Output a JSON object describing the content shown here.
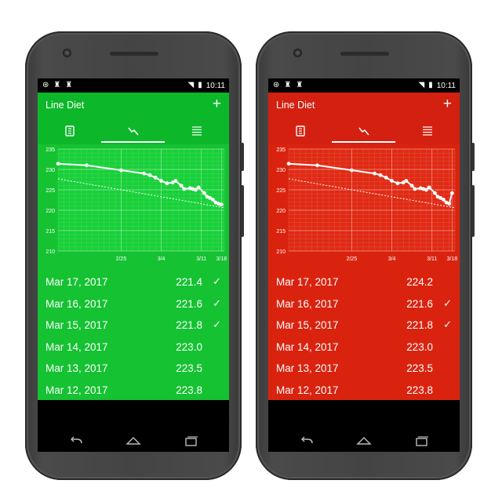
{
  "phones": [
    {
      "theme": {
        "primary": "#0cb829",
        "dark": "#099a20",
        "screen": "#15c232",
        "chart_bg": "#18d039"
      },
      "status": {
        "time": "10:11"
      },
      "app": {
        "title": "Line Diet",
        "add": "+"
      },
      "tabs": [
        {
          "name": "book-icon"
        },
        {
          "name": "chart-icon"
        },
        {
          "name": "list-icon"
        }
      ],
      "chart_data": {
        "type": "line",
        "ylim": [
          210,
          235
        ],
        "yticks": [
          "235",
          "230",
          "225",
          "220",
          "215",
          "210"
        ],
        "xticks": [
          "2/25",
          "3/4",
          "3/11",
          "3/18"
        ],
        "series": [
          {
            "values": [
              [
                0,
                231.4
              ],
              [
                10,
                231.0
              ],
              [
                22,
                229.8
              ],
              [
                30,
                229.0
              ],
              [
                32,
                228.6
              ],
              [
                34,
                228.0
              ],
              [
                36,
                227.2
              ],
              [
                38,
                226.6
              ],
              [
                40,
                226.8
              ],
              [
                41,
                227.2
              ],
              [
                43,
                226.0
              ],
              [
                44,
                225.2
              ],
              [
                46,
                225.4
              ],
              [
                47,
                225.2
              ],
              [
                48,
                225.0
              ],
              [
                49,
                225.6
              ],
              [
                51,
                224.2
              ],
              [
                52,
                223.3
              ],
              [
                53,
                223.0
              ],
              [
                54,
                222.6
              ],
              [
                55,
                221.9
              ],
              [
                56,
                221.6
              ],
              [
                57,
                221.4
              ]
            ]
          }
        ],
        "trend": [
          [
            0,
            227.7
          ],
          [
            58,
            220.6
          ]
        ]
      },
      "entries": [
        {
          "date": "Mar 17, 2017",
          "value": "221.4",
          "check": "✓"
        },
        {
          "date": "Mar 16, 2017",
          "value": "221.6",
          "check": "✓"
        },
        {
          "date": "Mar 15, 2017",
          "value": "221.8",
          "check": "✓"
        },
        {
          "date": "Mar 14, 2017",
          "value": "223.0",
          "check": ""
        },
        {
          "date": "Mar 13, 2017",
          "value": "223.5",
          "check": ""
        },
        {
          "date": "Mar 12, 2017",
          "value": "223.8",
          "check": ""
        }
      ]
    },
    {
      "theme": {
        "primary": "#d32010",
        "dark": "#b81a0c",
        "screen": "#da230f",
        "chart_bg": "#e02a14"
      },
      "status": {
        "time": "10:11"
      },
      "app": {
        "title": "Line Diet",
        "add": "+"
      },
      "tabs": [
        {
          "name": "book-icon"
        },
        {
          "name": "chart-icon"
        },
        {
          "name": "list-icon"
        }
      ],
      "chart_data": {
        "type": "line",
        "ylim": [
          210,
          235
        ],
        "yticks": [
          "235",
          "230",
          "225",
          "220",
          "215",
          "210"
        ],
        "xticks": [
          "2/25",
          "3/4",
          "3/11",
          "3/18"
        ],
        "series": [
          {
            "values": [
              [
                0,
                231.4
              ],
              [
                10,
                231.0
              ],
              [
                22,
                229.8
              ],
              [
                30,
                229.0
              ],
              [
                32,
                228.6
              ],
              [
                34,
                228.0
              ],
              [
                36,
                227.2
              ],
              [
                38,
                226.6
              ],
              [
                40,
                226.8
              ],
              [
                41,
                227.2
              ],
              [
                43,
                226.0
              ],
              [
                44,
                225.2
              ],
              [
                46,
                225.4
              ],
              [
                47,
                225.2
              ],
              [
                48,
                225.0
              ],
              [
                49,
                225.6
              ],
              [
                51,
                224.2
              ],
              [
                52,
                223.3
              ],
              [
                53,
                223.0
              ],
              [
                54,
                222.6
              ],
              [
                55,
                221.9
              ],
              [
                56,
                221.6
              ],
              [
                57,
                224.2
              ]
            ]
          }
        ],
        "trend": [
          [
            0,
            227.7
          ],
          [
            58,
            220.6
          ]
        ]
      },
      "entries": [
        {
          "date": "Mar 17, 2017",
          "value": "224.2",
          "check": ""
        },
        {
          "date": "Mar 16, 2017",
          "value": "221.6",
          "check": "✓"
        },
        {
          "date": "Mar 15, 2017",
          "value": "221.8",
          "check": "✓"
        },
        {
          "date": "Mar 14, 2017",
          "value": "223.0",
          "check": ""
        },
        {
          "date": "Mar 13, 2017",
          "value": "223.5",
          "check": ""
        },
        {
          "date": "Mar 12, 2017",
          "value": "223.8",
          "check": ""
        }
      ]
    }
  ]
}
